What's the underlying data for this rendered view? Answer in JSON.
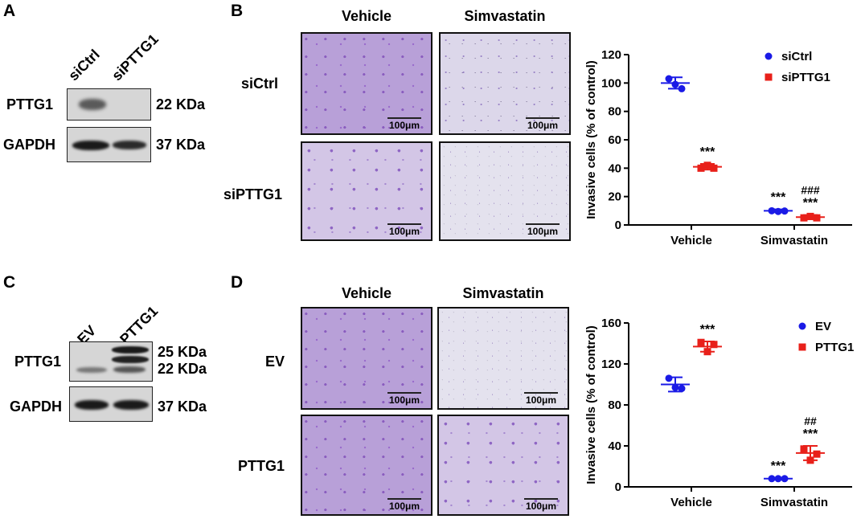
{
  "panel_labels": {
    "a": "A",
    "b": "B",
    "c": "C",
    "d": "D"
  },
  "western_a": {
    "lanes": [
      "siCtrl",
      "siPTTG1"
    ],
    "rows": [
      {
        "protein": "PTTG1",
        "size": "22 KDa"
      },
      {
        "protein": "GAPDH",
        "size": "37 KDa"
      }
    ]
  },
  "western_c": {
    "lanes": [
      "EV",
      "PTTG1"
    ],
    "rows": [
      {
        "protein": "PTTG1",
        "size_1": "25 KDa",
        "size_2": "22 KDa"
      },
      {
        "protein": "GAPDH",
        "size": "37 KDa"
      }
    ]
  },
  "micro_b": {
    "columns": [
      "Vehicle",
      "Simvastatin"
    ],
    "rows": [
      "siCtrl",
      "siPTTG1"
    ],
    "scale_bar": "100μm"
  },
  "micro_d": {
    "columns": [
      "Vehicle",
      "Simvastatin"
    ],
    "rows": [
      "EV",
      "PTTG1"
    ],
    "scale_bar": "100μm"
  },
  "colors": {
    "blue": "#1a1ae6",
    "red": "#e8201a"
  },
  "chart_data": [
    {
      "type": "scatter",
      "title": "",
      "xlabel": "",
      "ylabel": "Invasive cells (% of control)",
      "ylim": [
        0,
        120
      ],
      "yticks": [
        0,
        20,
        40,
        60,
        80,
        100,
        120
      ],
      "categories": [
        "Vehicle",
        "Simvastatin"
      ],
      "legend_position": "top-right",
      "series": [
        {
          "name": "siCtrl",
          "marker": "circle",
          "color": "#1a1ae6",
          "points": [
            [
              103,
              99,
              96
            ],
            [
              10,
              9.5,
              9.8
            ]
          ],
          "means": [
            100,
            10
          ],
          "errors": [
            4,
            1
          ],
          "annotations": [
            "",
            "***"
          ]
        },
        {
          "name": "siPTTG1",
          "marker": "square",
          "color": "#e8201a",
          "points": [
            [
              40,
              42,
              40
            ],
            [
              5,
              6,
              5
            ]
          ],
          "means": [
            41,
            5.5
          ],
          "errors": [
            2,
            1.5
          ],
          "annotations": [
            "***",
            "***"
          ],
          "annotations_top": [
            "",
            "###"
          ]
        }
      ]
    },
    {
      "type": "scatter",
      "title": "",
      "xlabel": "",
      "ylabel": "Invasive cells (% of control)",
      "ylim": [
        0,
        160
      ],
      "yticks": [
        0,
        40,
        80,
        120,
        160
      ],
      "categories": [
        "Vehicle",
        "Simvastatin"
      ],
      "legend_position": "top-right",
      "series": [
        {
          "name": "EV",
          "marker": "circle",
          "color": "#1a1ae6",
          "points": [
            [
              106,
              97,
              96
            ],
            [
              8,
              8,
              8
            ]
          ],
          "means": [
            100,
            8
          ],
          "errors": [
            7,
            0.5
          ],
          "annotations": [
            "",
            "***"
          ]
        },
        {
          "name": "PTTG1",
          "marker": "square",
          "color": "#e8201a",
          "points": [
            [
              141,
              132,
              139
            ],
            [
              37,
              26,
              32
            ]
          ],
          "means": [
            137,
            33
          ],
          "errors": [
            5,
            7
          ],
          "annotations": [
            "***",
            "***"
          ],
          "annotations_top": [
            "",
            "##"
          ]
        }
      ]
    }
  ]
}
